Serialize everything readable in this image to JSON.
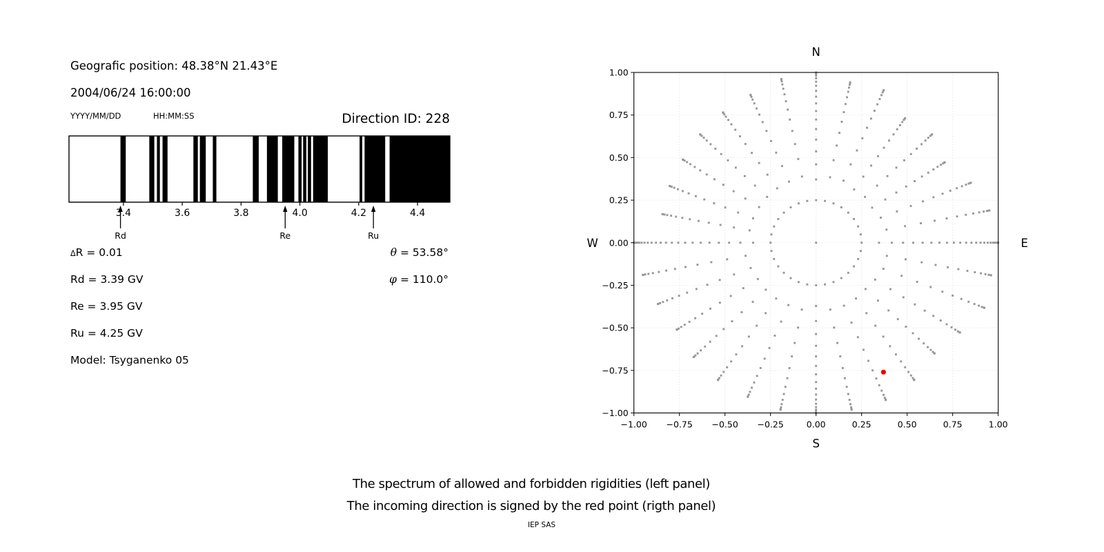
{
  "header": {
    "position": "Geografic position: 48.38°N 21.43°E",
    "datetime": "2004/06/24 16:00:00",
    "date_format": "YYYY/MM/DD",
    "time_format": "HH:MM:SS",
    "direction_id": "Direction ID: 228"
  },
  "parameters": {
    "delta_symbol": "Δ",
    "delta_rest": "R = 0.01",
    "rd": "Rd = 3.39 GV",
    "re": "Re = 3.95 GV",
    "ru": "Ru = 4.25 GV",
    "model": "Model: Tsyganenko 05",
    "theta_symbol": "θ",
    "theta_rest": " = 53.58°",
    "phi_symbol": "φ",
    "phi_rest": " = 110.0°"
  },
  "caption": {
    "line1": "The spectrum of allowed and forbidden rigidities (left panel)",
    "line2": "The incoming direction is signed by the red point (rigth panel)",
    "credit": "IEP SAS"
  },
  "chart_data": [
    {
      "type": "bar",
      "title": "Rigidity spectrum barcode",
      "xlabel": "",
      "ylabel": "",
      "xlim": [
        3.215,
        4.51
      ],
      "tick_values": [
        3.4,
        3.6,
        3.8,
        4.0,
        4.2,
        4.4
      ],
      "tick_labels": [
        "3.4",
        "3.6",
        "3.8",
        "4.0",
        "4.2",
        "4.4"
      ],
      "bar_color": "#000000",
      "black_intervals": [
        [
          3.39,
          3.408
        ],
        [
          3.488,
          3.505
        ],
        [
          3.514,
          3.524
        ],
        [
          3.533,
          3.55
        ],
        [
          3.638,
          3.653
        ],
        [
          3.66,
          3.68
        ],
        [
          3.704,
          3.716
        ],
        [
          3.84,
          3.86
        ],
        [
          3.888,
          3.925
        ],
        [
          3.94,
          3.981
        ],
        [
          3.995,
          4.006
        ],
        [
          4.011,
          4.022
        ],
        [
          4.027,
          4.038
        ],
        [
          4.045,
          4.095
        ],
        [
          4.203,
          4.212
        ],
        [
          4.22,
          4.29
        ],
        [
          4.305,
          4.51
        ]
      ],
      "markers": [
        {
          "label": "Rd",
          "value": 3.39
        },
        {
          "label": "Re",
          "value": 3.95
        },
        {
          "label": "Ru",
          "value": 4.25
        }
      ]
    },
    {
      "type": "scatter",
      "title": "Incoming direction map",
      "compass": {
        "top": "N",
        "bottom": "S",
        "left": "W",
        "right": "E"
      },
      "xlim": [
        -1,
        1
      ],
      "ylim": [
        -1,
        1
      ],
      "xtick_values": [
        -1,
        -0.75,
        -0.5,
        -0.25,
        0,
        0.25,
        0.5,
        0.75,
        1
      ],
      "xtick_labels": [
        "−1.00",
        "−0.75",
        "−0.50",
        "−0.25",
        "0.00",
        "0.25",
        "0.50",
        "0.75",
        "1.00"
      ],
      "ytick_values": [
        1,
        0.75,
        0.5,
        0.25,
        0,
        -0.25,
        -0.5,
        -0.75,
        -1
      ],
      "ytick_labels": [
        "1.00",
        "0.75",
        "0.50",
        "0.25",
        "0.00",
        "−0.25",
        "−0.50",
        "−0.75",
        "−1.00"
      ],
      "grid": true,
      "grid_color": "#dedede",
      "dot_color": "#979797",
      "r_start": 0.25,
      "center_dot": true,
      "dots_per_spoke": 14,
      "red_point": {
        "x": 0.37,
        "y": -0.76,
        "color": "#ee0000"
      },
      "spokes": [
        {
          "a": 0.0,
          "r": 1.0,
          "n": 24
        },
        {
          "a": 11.25,
          "r": 0.97
        },
        {
          "a": 22.5,
          "r": 0.92
        },
        {
          "a": 33.75,
          "r": 0.85
        },
        {
          "a": 45.0,
          "r": 0.9
        },
        {
          "a": 56.25,
          "r": 0.88
        },
        {
          "a": 67.5,
          "r": 0.97
        },
        {
          "a": 78.75,
          "r": 0.96
        },
        {
          "a": 90.0,
          "r": 1.0,
          "n": 18
        },
        {
          "a": 101.25,
          "r": 0.98
        },
        {
          "a": 112.5,
          "r": 0.94
        },
        {
          "a": 123.75,
          "r": 0.92
        },
        {
          "a": 135.0,
          "r": 0.9
        },
        {
          "a": 146.25,
          "r": 0.88
        },
        {
          "a": 157.5,
          "r": 0.87
        },
        {
          "a": 168.75,
          "r": 0.86
        },
        {
          "a": 180.0,
          "r": 1.0,
          "n": 24
        },
        {
          "a": 191.25,
          "r": 0.97
        },
        {
          "a": 202.5,
          "r": 0.94
        },
        {
          "a": 213.75,
          "r": 0.92
        },
        {
          "a": 225.0,
          "r": 0.95
        },
        {
          "a": 236.25,
          "r": 0.97
        },
        {
          "a": 247.5,
          "r": 0.98
        },
        {
          "a": 258.75,
          "r": 1.0
        },
        {
          "a": 270.0,
          "r": 1.0,
          "n": 18
        },
        {
          "a": 281.25,
          "r": 1.0
        },
        {
          "a": 292.5,
          "r": 1.0
        },
        {
          "a": 303.75,
          "r": 0.97
        },
        {
          "a": 315.0,
          "r": 0.92
        },
        {
          "a": 326.25,
          "r": 0.95
        },
        {
          "a": 337.5,
          "r": 1.0
        },
        {
          "a": 348.75,
          "r": 0.98
        }
      ]
    }
  ]
}
